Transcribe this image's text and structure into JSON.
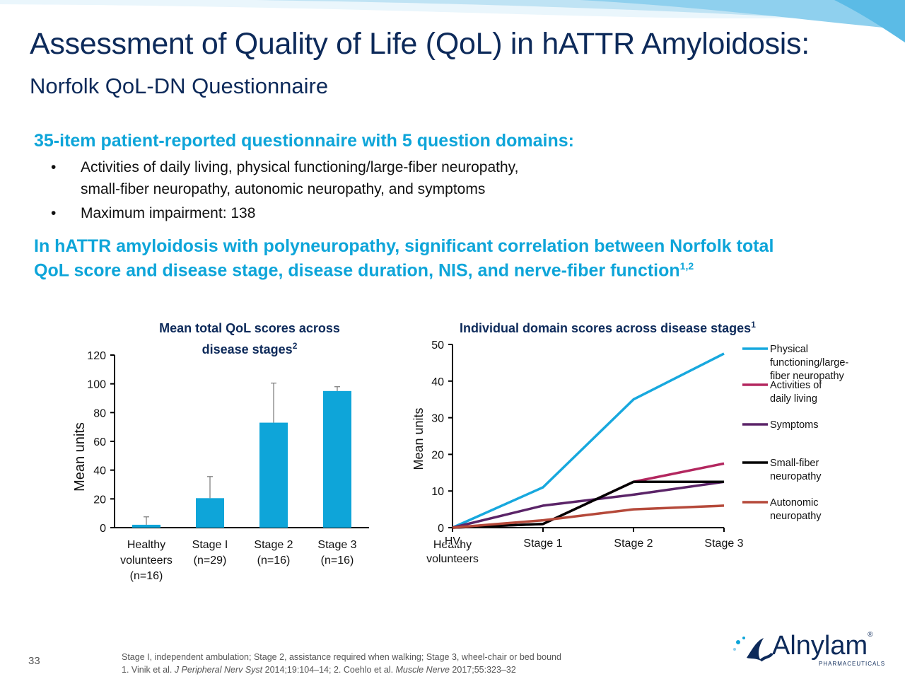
{
  "slide": {
    "title": "Assessment of Quality of Life (QoL) in hATTR Amyloidosis:",
    "subtitle": "Norfolk QoL-DN Questionnaire",
    "heading1": "35-item patient-reported questionnaire with 5 question domains:",
    "bullets": [
      {
        "line1": "Activities of daily living, physical functioning/large-fiber neuropathy,",
        "line2": "small-fiber neuropathy, autonomic neuropathy, and symptoms"
      },
      {
        "line1": "Maximum impairment: 138"
      }
    ],
    "heading2_line1": "In hATTR amyloidosis with polyneuropathy, significant correlation between Norfolk total",
    "heading2_line2": "QoL score and disease stage, disease duration, NIS, and nerve-fiber function",
    "heading2_sup": "1,2",
    "bullet_glyph": "•",
    "slide_number": "33",
    "footnote_line1": "Stage I, independent ambulation; Stage 2, assistance required when walking; Stage 3, wheel-chair or bed bound",
    "footnote_ref_prefix": "1. Vinik et al. ",
    "footnote_ref_journal1": "J Peripheral Nerv Syst",
    "footnote_ref_mid": " 2014;19:104–14; 2. Coehlo et al. ",
    "footnote_ref_journal2": "Muscle Nerve",
    "footnote_ref_suffix": " 2017;55:323–32",
    "logo_text": "Alnylam",
    "logo_sub": "PHARMACEUTICALS",
    "logo_reg": "®"
  },
  "colors": {
    "title": "#0d2a5a",
    "accent_blue": "#0ea5d9",
    "bar": "#0ea5d9",
    "physical": "#17a8de",
    "activities": "#b3275f",
    "symptoms": "#5b2468",
    "small_fiber": "#000000",
    "autonomic": "#b5493a"
  },
  "chart_data": [
    {
      "type": "bar",
      "title_line1": "Mean total QoL scores across",
      "title_line2": "disease stages",
      "title_sup": "2",
      "ylabel": "Mean units",
      "ylim": [
        0,
        120
      ],
      "yticks": [
        0,
        20,
        40,
        60,
        80,
        100,
        120
      ],
      "categories": [
        [
          "Healthy",
          "volunteers",
          "(n=16)"
        ],
        [
          "Stage I",
          "(n=29)"
        ],
        [
          "Stage 2",
          "(n=16)"
        ],
        [
          "Stage 3",
          "(n=16)"
        ]
      ],
      "values": [
        2,
        20.5,
        73,
        95
      ],
      "error_upper": [
        7.5,
        35.5,
        100.5,
        98
      ]
    },
    {
      "type": "line",
      "title": "Individual domain scores across disease stages",
      "title_sup": "1",
      "ylabel": "Mean units",
      "ylim": [
        0,
        50
      ],
      "yticks": [
        0,
        10,
        20,
        30,
        40,
        50
      ],
      "categories": [
        [
          "HV",
          "volunteers"
        ],
        [
          "Stage 1"
        ],
        [
          "Stage 2"
        ],
        [
          "Stage 3"
        ]
      ],
      "category_overlap_text": "Healthy",
      "series": [
        {
          "name": "Physical functioning/large-fiber neuropathy",
          "name_lines": [
            "Physical",
            "functioning/large-",
            "fiber neuropathy"
          ],
          "color_key": "physical",
          "values": [
            0,
            11,
            35,
            47.5
          ]
        },
        {
          "name": "Activities of daily living",
          "name_lines": [
            "Activities of",
            "daily living"
          ],
          "color_key": "activities",
          "values": [
            0,
            1,
            12.5,
            17.5
          ]
        },
        {
          "name": "Symptoms",
          "name_lines": [
            "Symptoms"
          ],
          "color_key": "symptoms",
          "values": [
            0,
            6,
            9,
            12.5
          ]
        },
        {
          "name": "Small-fiber neuropathy",
          "name_lines": [
            "Small-fiber",
            "neuropathy"
          ],
          "color_key": "small_fiber",
          "values": [
            0,
            1,
            12.5,
            12.5
          ]
        },
        {
          "name": "Autonomic neuropathy",
          "name_lines": [
            "Autonomic",
            "neuropathy"
          ],
          "color_key": "autonomic",
          "values": [
            0,
            2,
            5,
            6
          ]
        }
      ]
    }
  ]
}
